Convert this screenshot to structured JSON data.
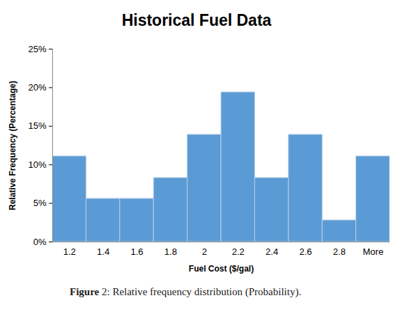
{
  "chart_data": {
    "type": "bar",
    "title": "Historical Fuel Data",
    "caption": "Figure 2: Relative frequency distribution (Probability).",
    "x_label": "Fuel Cost ($/gal)",
    "y_label": "Relative Frequency (Percentage)",
    "categories": [
      "1.2",
      "1.4",
      "1.6",
      "1.8",
      "2",
      "2.2",
      "2.4",
      "2.6",
      "2.8",
      "More"
    ],
    "values": [
      11.1,
      5.6,
      5.6,
      8.3,
      13.9,
      19.4,
      8.3,
      13.9,
      2.8,
      11.1
    ],
    "color": "#5b9bd5",
    "ylim": [
      0,
      25
    ],
    "yticks": [
      {
        "value": 0,
        "label": "0%"
      },
      {
        "value": 5,
        "label": "5%"
      },
      {
        "value": 10,
        "label": "10%"
      },
      {
        "value": 15,
        "label": "15%"
      },
      {
        "value": 20,
        "label": "20%"
      },
      {
        "value": 25,
        "label": "25%"
      }
    ],
    "grid": false
  }
}
